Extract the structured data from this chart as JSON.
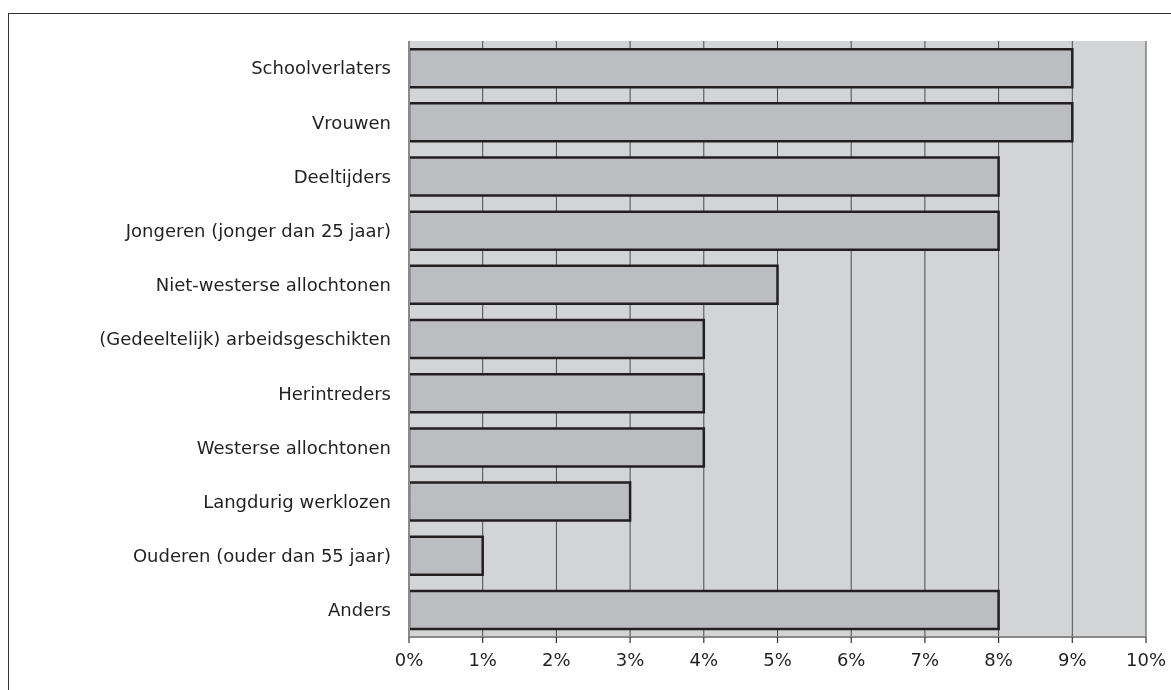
{
  "chart_data": {
    "type": "bar",
    "orientation": "horizontal",
    "categories": [
      "Schoolverlaters",
      "Vrouwen",
      "Deeltijders",
      "Jongeren (jonger dan 25 jaar)",
      "Niet-westerse allochtonen",
      "(Gedeeltelijk) arbeidsgeschikten",
      "Herintreders",
      "Westerse allochtonen",
      "Langdurig werklozen",
      "Ouderen (ouder dan 55 jaar)",
      "Anders"
    ],
    "values": [
      9,
      9,
      8,
      8,
      5,
      4,
      4,
      4,
      3,
      1,
      8
    ],
    "color": "#bcbdc1",
    "xlim": [
      0,
      10
    ],
    "xticks": [
      {
        "value": 0,
        "label": "0%"
      },
      {
        "value": 1,
        "label": "1%"
      },
      {
        "value": 2,
        "label": "2%"
      },
      {
        "value": 3,
        "label": "3%"
      },
      {
        "value": 4,
        "label": "4%"
      },
      {
        "value": 5,
        "label": "5%"
      },
      {
        "value": 6,
        "label": "6%"
      },
      {
        "value": 7,
        "label": "7%"
      },
      {
        "value": 8,
        "label": "8%"
      },
      {
        "value": 9,
        "label": "9%"
      },
      {
        "value": 10,
        "label": "10%"
      }
    ],
    "grid": "x"
  }
}
